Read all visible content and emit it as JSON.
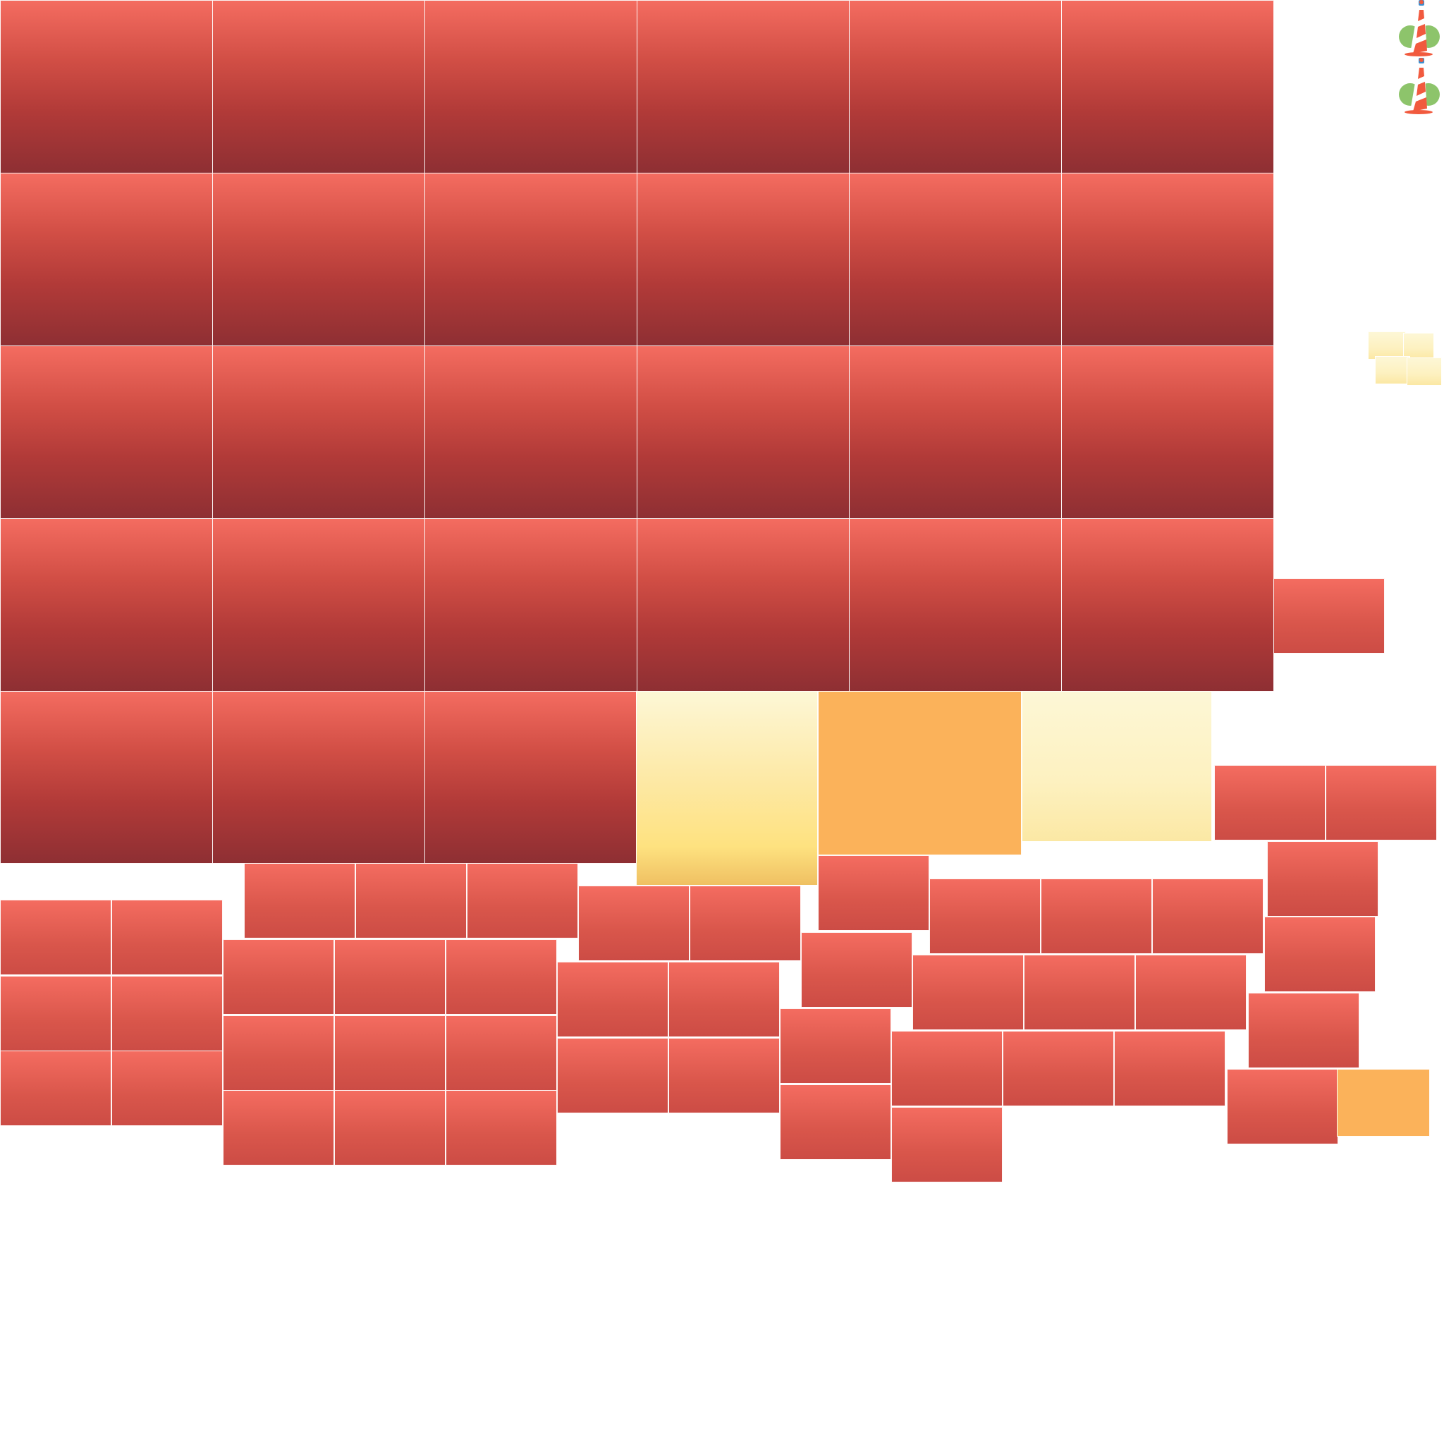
{
  "colors": {
    "big_red_top": "#f46c60",
    "big_red_bottom": "#8e2f33",
    "small_red": "#e15b4f",
    "yellow": "#fee280",
    "orange": "#fbb25a",
    "background": "#ffffff"
  },
  "icons": [
    {
      "name": "lighthouse-palm-icon"
    },
    {
      "name": "lighthouse-palm-icon"
    }
  ]
}
